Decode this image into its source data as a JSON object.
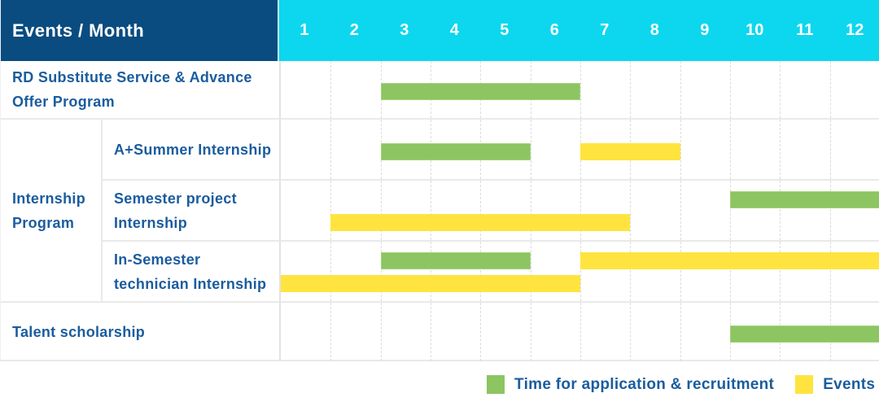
{
  "header": {
    "title": "Events / Month",
    "months": [
      "1",
      "2",
      "3",
      "4",
      "5",
      "6",
      "7",
      "8",
      "9",
      "10",
      "11",
      "12"
    ]
  },
  "colors": {
    "navy": "#0a4c80",
    "cyan": "#0cd7ee",
    "green": "#8cc561",
    "yellow": "#ffe440",
    "label_text": "#1a5c9e",
    "header_text": "#ffffff",
    "row_border": "#e9e9e9",
    "grid_line": "#dcdcdc"
  },
  "groups": [
    {
      "label": "Internship Program"
    }
  ],
  "chart_data": {
    "type": "gantt",
    "title": "Events / Month",
    "x_axis": {
      "label": "Month",
      "ticks": [
        1,
        2,
        3,
        4,
        5,
        6,
        7,
        8,
        9,
        10,
        11,
        12
      ],
      "range": [
        1,
        12
      ]
    },
    "rows": [
      {
        "label": "RD Substitute Service & Advance Offer Program",
        "bars": [
          {
            "start_month": 3,
            "end_month": 6,
            "series": "Time for application & recruitment",
            "color": "green",
            "track": "mid"
          }
        ]
      },
      {
        "label": "A+Summer Internship",
        "group": "Internship Program",
        "bars": [
          {
            "start_month": 3,
            "end_month": 5,
            "series": "Time for application & recruitment",
            "color": "green",
            "track": "mid"
          },
          {
            "start_month": 7,
            "end_month": 8,
            "series": "Events",
            "color": "yellow",
            "track": "mid"
          }
        ]
      },
      {
        "label": "Semester project Internship",
        "group": "Internship Program",
        "bars": [
          {
            "start_month": 10,
            "end_month": 12,
            "series": "Time for application & recruitment",
            "color": "green",
            "track": "top"
          },
          {
            "start_month": 2,
            "end_month": 7,
            "series": "Events",
            "color": "yellow",
            "track": "bottom"
          }
        ]
      },
      {
        "label": "In-Semester technician Internship",
        "group": "Internship Program",
        "bars": [
          {
            "start_month": 3,
            "end_month": 5,
            "series": "Time for application & recruitment",
            "color": "green",
            "track": "top"
          },
          {
            "start_month": 7,
            "end_month": 12,
            "series": "Events",
            "color": "yellow",
            "track": "top"
          },
          {
            "start_month": 1,
            "end_month": 6,
            "series": "Events",
            "color": "yellow",
            "track": "bottom"
          }
        ]
      },
      {
        "label": "Talent scholarship",
        "bars": [
          {
            "start_month": 10,
            "end_month": 12,
            "series": "Time for application & recruitment",
            "color": "green",
            "track": "mid"
          }
        ]
      }
    ],
    "legend": [
      {
        "color_name": "green",
        "color": "#8cc561",
        "label": "Time for application & recruitment"
      },
      {
        "color_name": "yellow",
        "color": "#ffe440",
        "label": "Events"
      }
    ],
    "layout": {
      "grid": "dashed-vertical-month-lines",
      "legend_position": "bottom-right"
    }
  }
}
